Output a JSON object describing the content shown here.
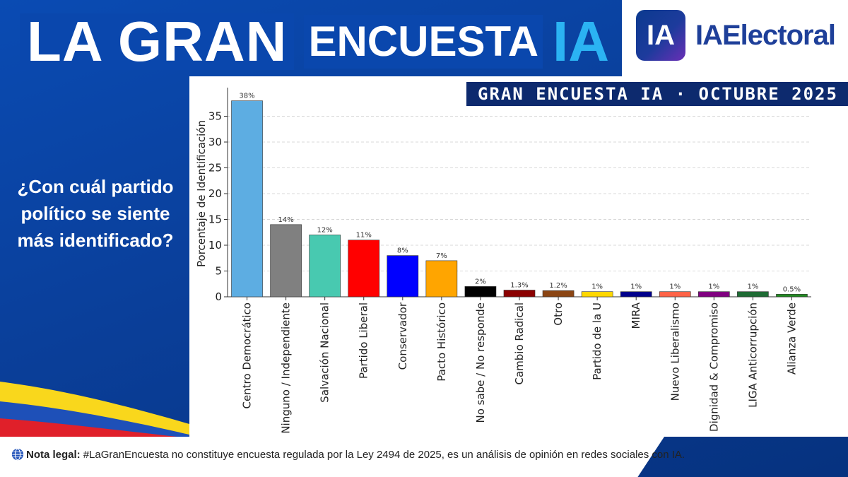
{
  "header": {
    "title_part1": "LA GRAN",
    "title_part2": "ENCUESTA",
    "title_part3": "IA",
    "logo_mark": "IA",
    "logo_text": "IAElectoral"
  },
  "banner": "GRAN ENCUESTA IA · OCTUBRE 2025",
  "question": "¿Con cuál partido político se siente más identificado?",
  "footer": {
    "label": "Nota legal:",
    "text": "#LaGranEncuesta no constituye encuesta regulada por la Ley 2494 de 2025, es un análisis de opinión en redes sociales con IA."
  },
  "colors": {
    "background": "#0a47ad",
    "accent": "#2bb3f3",
    "banner": "#0d2a6e"
  },
  "chart_data": {
    "type": "bar",
    "title": "",
    "xlabel": "",
    "ylabel": "Porcentaje de Identificación",
    "ylim": [
      0,
      40
    ],
    "yticks": [
      0,
      5,
      10,
      15,
      20,
      25,
      30,
      35
    ],
    "grid": true,
    "categories": [
      "Centro Democrático",
      "Ninguno / Independiente",
      "Salvación Nacional",
      "Partido Liberal",
      "Conservador",
      "Pacto Histórico",
      "No sabe / No responde",
      "Cambio Radical",
      "Otro",
      "Partido de la U",
      "MIRA",
      "Nuevo Liberalismo",
      "Dignidad & Compromiso",
      "LIGA Anticorrupción",
      "Alianza Verde"
    ],
    "values": [
      38,
      14,
      12,
      11,
      8,
      7,
      2,
      1.3,
      1.2,
      1,
      1,
      1,
      1,
      1,
      0.5
    ],
    "labels": [
      "38%",
      "14%",
      "12%",
      "11%",
      "8%",
      "7%",
      "2%",
      "1.3%",
      "1.2%",
      "1%",
      "1%",
      "1%",
      "1%",
      "1%",
      "0.5%"
    ],
    "colors": [
      "#5dade2",
      "#808080",
      "#48c9b0",
      "#ff0000",
      "#0000ff",
      "#ffa500",
      "#000000",
      "#8b0000",
      "#8b4513",
      "#ffd700",
      "#00008b",
      "#ff6347",
      "#800080",
      "#1e6b34",
      "#228b22"
    ]
  }
}
